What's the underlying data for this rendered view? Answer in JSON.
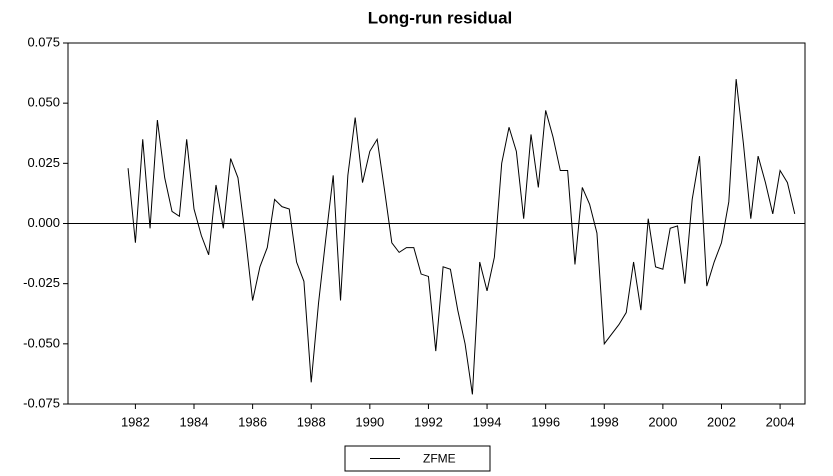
{
  "chart_data": {
    "type": "line",
    "title": "Long-run residual",
    "x": [
      1981.75,
      1982,
      1982.25,
      1982.5,
      1982.75,
      1983,
      1983.25,
      1983.5,
      1983.75,
      1984,
      1984.25,
      1984.5,
      1984.75,
      1985,
      1985.25,
      1985.5,
      1985.75,
      1986,
      1986.25,
      1986.5,
      1986.75,
      1987,
      1987.25,
      1987.5,
      1987.75,
      1988,
      1988.25,
      1988.5,
      1988.75,
      1989,
      1989.25,
      1989.5,
      1989.75,
      1990,
      1990.25,
      1990.5,
      1990.75,
      1991,
      1991.25,
      1991.5,
      1991.75,
      1992,
      1992.25,
      1992.5,
      1992.75,
      1993,
      1993.25,
      1993.5,
      1993.75,
      1994,
      1994.25,
      1994.5,
      1994.75,
      1995,
      1995.25,
      1995.5,
      1995.75,
      1996,
      1996.25,
      1996.5,
      1996.75,
      1997,
      1997.25,
      1997.5,
      1997.75,
      1998,
      1998.25,
      1998.5,
      1998.75,
      1999,
      1999.25,
      1999.5,
      1999.75,
      2000,
      2000.25,
      2000.5,
      2000.75,
      2001,
      2001.25,
      2001.5,
      2001.75,
      2002,
      2002.25,
      2002.5,
      2002.75,
      2003,
      2003.25,
      2003.5,
      2003.75,
      2004,
      2004.25,
      2004.5
    ],
    "series": [
      {
        "name": "ZFME",
        "color": "#000000",
        "values": [
          0.023,
          -0.008,
          0.035,
          -0.002,
          0.043,
          0.019,
          0.005,
          0.003,
          0.035,
          0.006,
          -0.005,
          -0.013,
          0.016,
          -0.002,
          0.027,
          0.019,
          -0.005,
          -0.032,
          -0.018,
          -0.01,
          0.01,
          0.007,
          0.006,
          -0.016,
          -0.024,
          -0.066,
          -0.033,
          -0.006,
          0.02,
          -0.032,
          0.02,
          0.044,
          0.017,
          0.03,
          0.035,
          0.014,
          -0.008,
          -0.012,
          -0.01,
          -0.01,
          -0.021,
          -0.022,
          -0.053,
          -0.018,
          -0.019,
          -0.036,
          -0.05,
          -0.071,
          -0.016,
          -0.028,
          -0.014,
          0.025,
          0.04,
          0.03,
          0.002,
          0.037,
          0.015,
          0.047,
          0.036,
          0.022,
          0.022,
          -0.017,
          0.015,
          0.008,
          -0.004,
          -0.05,
          -0.046,
          -0.042,
          -0.037,
          -0.016,
          -0.036,
          0.002,
          -0.018,
          -0.019,
          -0.002,
          -0.001,
          -0.025,
          0.01,
          0.028,
          -0.026,
          -0.016,
          -0.008,
          0.009,
          0.06,
          0.033,
          0.002,
          0.028,
          0.017,
          0.004,
          0.022,
          0.017,
          0.004
        ]
      }
    ],
    "xlim": [
      1979.7,
      2004.85
    ],
    "xticks": [
      1982,
      1984,
      1986,
      1988,
      1990,
      1992,
      1994,
      1996,
      1998,
      2000,
      2002,
      2004
    ],
    "ylim": [
      -0.075,
      0.075
    ],
    "yticks": [
      {
        "value": 0.075,
        "label": "0.075"
      },
      {
        "value": 0.05,
        "label": "0.050"
      },
      {
        "value": 0.025,
        "label": "0.025"
      },
      {
        "value": 0,
        "label": "0.000"
      },
      {
        "value": -0.025,
        "label": "-0.025"
      },
      {
        "value": -0.05,
        "label": "-0.050"
      },
      {
        "value": -0.075,
        "label": "-0.075"
      }
    ],
    "legend": "bottom"
  }
}
